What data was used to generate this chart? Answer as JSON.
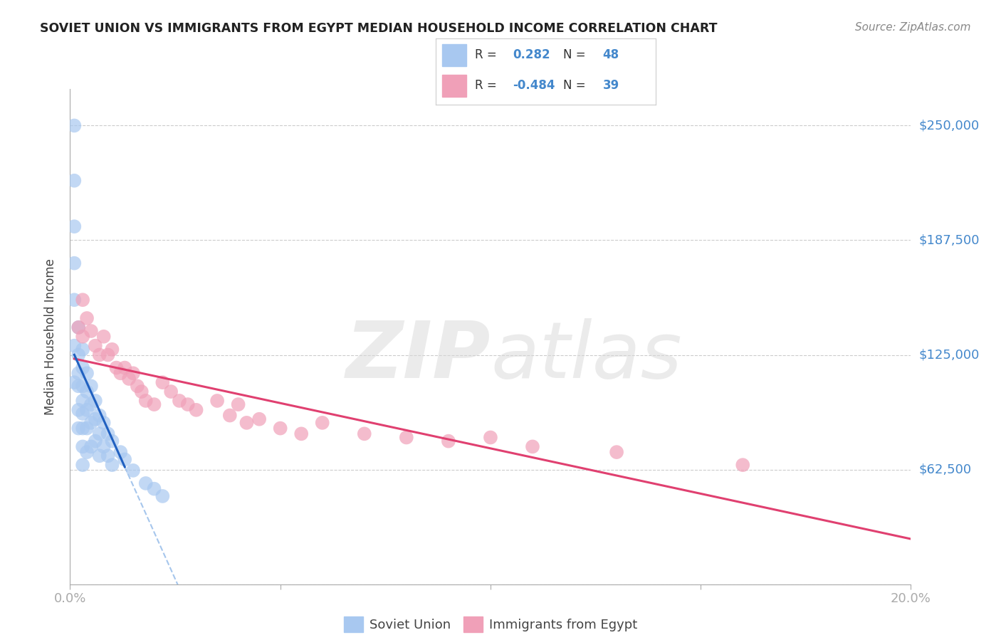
{
  "title": "SOVIET UNION VS IMMIGRANTS FROM EGYPT MEDIAN HOUSEHOLD INCOME CORRELATION CHART",
  "source": "Source: ZipAtlas.com",
  "ylabel": "Median Household Income",
  "xlim": [
    0.0,
    0.2
  ],
  "ylim": [
    0,
    270000
  ],
  "yticks": [
    0,
    62500,
    125000,
    187500,
    250000
  ],
  "ytick_labels": [
    "",
    "$62,500",
    "$125,000",
    "$187,500",
    "$250,000"
  ],
  "xticks": [
    0.0,
    0.05,
    0.1,
    0.15,
    0.2
  ],
  "xtick_labels": [
    "0.0%",
    "",
    "",
    "",
    "20.0%"
  ],
  "watermark_zip": "ZIP",
  "watermark_atlas": "atlas",
  "legend_r1_label": "R = ",
  "legend_r1_val": "0.282",
  "legend_n1_label": "N = ",
  "legend_n1_val": "48",
  "legend_r2_label": "R = ",
  "legend_r2_val": "-0.484",
  "legend_n2_label": "N = ",
  "legend_n2_val": "39",
  "blue_scatter_color": "#a8c8f0",
  "pink_scatter_color": "#f0a0b8",
  "blue_line_color": "#2060c0",
  "pink_line_color": "#e04070",
  "blue_dashed_color": "#90b8e8",
  "grid_color": "#cccccc",
  "tick_color": "#4488cc",
  "title_color": "#222222",
  "source_color": "#888888",
  "ylabel_color": "#444444",
  "soviet_x": [
    0.001,
    0.001,
    0.001,
    0.001,
    0.001,
    0.001,
    0.001,
    0.002,
    0.002,
    0.002,
    0.002,
    0.002,
    0.002,
    0.003,
    0.003,
    0.003,
    0.003,
    0.003,
    0.003,
    0.003,
    0.003,
    0.004,
    0.004,
    0.004,
    0.004,
    0.004,
    0.005,
    0.005,
    0.005,
    0.005,
    0.006,
    0.006,
    0.006,
    0.007,
    0.007,
    0.007,
    0.008,
    0.008,
    0.009,
    0.009,
    0.01,
    0.01,
    0.012,
    0.013,
    0.015,
    0.018,
    0.02,
    0.022
  ],
  "soviet_y": [
    250000,
    220000,
    195000,
    175000,
    155000,
    130000,
    110000,
    140000,
    125000,
    115000,
    108000,
    95000,
    85000,
    128000,
    118000,
    108000,
    100000,
    93000,
    85000,
    75000,
    65000,
    115000,
    105000,
    95000,
    85000,
    72000,
    108000,
    98000,
    88000,
    75000,
    100000,
    90000,
    78000,
    92000,
    82000,
    70000,
    88000,
    75000,
    82000,
    70000,
    78000,
    65000,
    72000,
    68000,
    62000,
    55000,
    52000,
    48000
  ],
  "egypt_x": [
    0.002,
    0.003,
    0.003,
    0.004,
    0.005,
    0.006,
    0.007,
    0.008,
    0.009,
    0.01,
    0.011,
    0.012,
    0.013,
    0.014,
    0.015,
    0.016,
    0.017,
    0.018,
    0.02,
    0.022,
    0.024,
    0.026,
    0.028,
    0.03,
    0.035,
    0.038,
    0.04,
    0.042,
    0.045,
    0.05,
    0.055,
    0.06,
    0.07,
    0.08,
    0.09,
    0.1,
    0.11,
    0.13,
    0.16
  ],
  "egypt_y": [
    140000,
    155000,
    135000,
    145000,
    138000,
    130000,
    125000,
    135000,
    125000,
    128000,
    118000,
    115000,
    118000,
    112000,
    115000,
    108000,
    105000,
    100000,
    98000,
    110000,
    105000,
    100000,
    98000,
    95000,
    100000,
    92000,
    98000,
    88000,
    90000,
    85000,
    82000,
    88000,
    82000,
    80000,
    78000,
    80000,
    75000,
    72000,
    65000
  ]
}
